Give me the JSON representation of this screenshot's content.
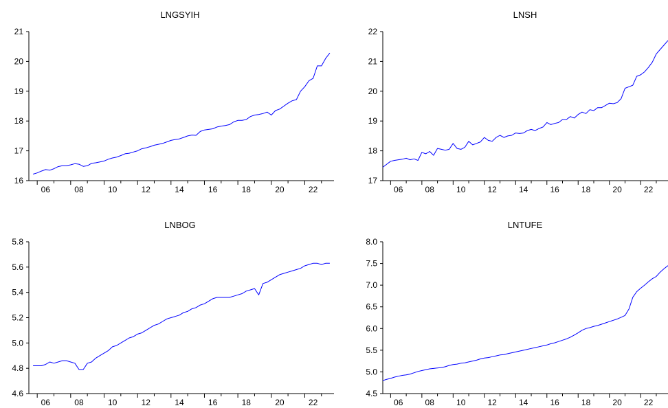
{
  "line_color": "#0000ff",
  "axis_color": "#000000",
  "chart_data": [
    {
      "type": "line",
      "title": "LNGSYIH",
      "xlabel": "",
      "ylabel": "",
      "grid": false,
      "xlim": [
        2005.5,
        2023.75
      ],
      "ylim": [
        16,
        21
      ],
      "yticks": [
        16,
        17,
        18,
        19,
        20,
        21
      ],
      "ytick_labels": [
        "16",
        "17",
        "18",
        "19",
        "20",
        "21"
      ],
      "xtick_years": [
        2006,
        2008,
        2010,
        2012,
        2014,
        2016,
        2018,
        2020,
        2022
      ],
      "xtick_labels": [
        "06",
        "08",
        "10",
        "12",
        "14",
        "16",
        "18",
        "20",
        "22"
      ],
      "series": [
        {
          "x": [
            2005.75,
            2006.0,
            2006.25,
            2006.5,
            2006.75,
            2007.0,
            2007.25,
            2007.5,
            2007.75,
            2008.0,
            2008.25,
            2008.5,
            2008.75,
            2009.0,
            2009.25,
            2009.5,
            2009.75,
            2010.0,
            2010.25,
            2010.5,
            2010.75,
            2011.0,
            2011.25,
            2011.5,
            2011.75,
            2012.0,
            2012.25,
            2012.5,
            2012.75,
            2013.0,
            2013.25,
            2013.5,
            2013.75,
            2014.0,
            2014.25,
            2014.5,
            2014.75,
            2015.0,
            2015.25,
            2015.5,
            2015.75,
            2016.0,
            2016.25,
            2016.5,
            2016.75,
            2017.0,
            2017.25,
            2017.5,
            2017.75,
            2018.0,
            2018.25,
            2018.5,
            2018.75,
            2019.0,
            2019.25,
            2019.5,
            2019.75,
            2020.0,
            2020.25,
            2020.5,
            2020.75,
            2021.0,
            2021.25,
            2021.5,
            2021.75,
            2022.0,
            2022.25,
            2022.5,
            2022.75,
            2023.0,
            2023.25,
            2023.5
          ],
          "values": [
            16.22,
            16.26,
            16.32,
            16.37,
            16.35,
            16.4,
            16.47,
            16.5,
            16.5,
            16.53,
            16.57,
            16.55,
            16.48,
            16.5,
            16.58,
            16.6,
            16.63,
            16.66,
            16.72,
            16.76,
            16.79,
            16.84,
            16.9,
            16.92,
            16.96,
            17.0,
            17.07,
            17.1,
            17.14,
            17.19,
            17.22,
            17.25,
            17.3,
            17.35,
            17.38,
            17.4,
            17.45,
            17.5,
            17.53,
            17.52,
            17.65,
            17.7,
            17.72,
            17.74,
            17.8,
            17.83,
            17.85,
            17.88,
            17.97,
            18.02,
            18.02,
            18.05,
            18.15,
            18.2,
            18.22,
            18.25,
            18.3,
            18.2,
            18.35,
            18.4,
            18.5,
            18.6,
            18.68,
            18.72,
            19.0,
            19.15,
            19.35,
            19.43,
            19.85,
            19.85,
            20.1,
            20.28
          ]
        }
      ]
    },
    {
      "type": "line",
      "title": "LNSH",
      "xlabel": "",
      "ylabel": "",
      "grid": false,
      "xlim": [
        2005.5,
        2023.75
      ],
      "ylim": [
        17,
        22
      ],
      "yticks": [
        17,
        18,
        19,
        20,
        21,
        22
      ],
      "ytick_labels": [
        "17",
        "18",
        "19",
        "20",
        "21",
        "22"
      ],
      "xtick_years": [
        2006,
        2008,
        2010,
        2012,
        2014,
        2016,
        2018,
        2020,
        2022
      ],
      "xtick_labels": [
        "06",
        "08",
        "10",
        "12",
        "14",
        "16",
        "18",
        "20",
        "22"
      ],
      "series": [
        {
          "x": [
            2005.5,
            2005.75,
            2006.0,
            2006.25,
            2006.5,
            2006.75,
            2007.0,
            2007.25,
            2007.5,
            2007.75,
            2008.0,
            2008.25,
            2008.5,
            2008.75,
            2009.0,
            2009.25,
            2009.5,
            2009.75,
            2010.0,
            2010.25,
            2010.5,
            2010.75,
            2011.0,
            2011.25,
            2011.5,
            2011.75,
            2012.0,
            2012.25,
            2012.5,
            2012.75,
            2013.0,
            2013.25,
            2013.5,
            2013.75,
            2014.0,
            2014.25,
            2014.5,
            2014.75,
            2015.0,
            2015.25,
            2015.5,
            2015.75,
            2016.0,
            2016.25,
            2016.5,
            2016.75,
            2017.0,
            2017.25,
            2017.5,
            2017.75,
            2018.0,
            2018.25,
            2018.5,
            2018.75,
            2019.0,
            2019.25,
            2019.5,
            2019.75,
            2020.0,
            2020.25,
            2020.5,
            2020.75,
            2021.0,
            2021.25,
            2021.5,
            2021.75,
            2022.0,
            2022.25,
            2022.5,
            2022.75,
            2023.0,
            2023.25,
            2023.5,
            2023.75
          ],
          "values": [
            17.45,
            17.55,
            17.65,
            17.68,
            17.7,
            17.72,
            17.75,
            17.7,
            17.73,
            17.68,
            17.95,
            17.9,
            17.98,
            17.85,
            18.08,
            18.05,
            18.02,
            18.05,
            18.25,
            18.08,
            18.05,
            18.12,
            18.32,
            18.2,
            18.25,
            18.3,
            18.45,
            18.35,
            18.32,
            18.45,
            18.52,
            18.45,
            18.5,
            18.52,
            18.6,
            18.58,
            18.6,
            18.68,
            18.72,
            18.68,
            18.75,
            18.8,
            18.95,
            18.88,
            18.92,
            18.95,
            19.05,
            19.05,
            19.15,
            19.1,
            19.22,
            19.3,
            19.25,
            19.38,
            19.35,
            19.45,
            19.45,
            19.52,
            19.6,
            19.58,
            19.62,
            19.75,
            20.1,
            20.15,
            20.2,
            20.5,
            20.55,
            20.65,
            20.8,
            20.98,
            21.25,
            21.4,
            21.55,
            21.7
          ]
        }
      ]
    },
    {
      "type": "line",
      "title": "LNBOG",
      "xlabel": "",
      "ylabel": "",
      "grid": false,
      "xlim": [
        2005.5,
        2023.75
      ],
      "ylim": [
        4.6,
        5.8
      ],
      "yticks": [
        4.6,
        4.8,
        5.0,
        5.2,
        5.4,
        5.6,
        5.8
      ],
      "ytick_labels": [
        "4.6",
        "4.8",
        "5.0",
        "5.2",
        "5.4",
        "5.6",
        "5.8"
      ],
      "xtick_years": [
        2006,
        2008,
        2010,
        2012,
        2014,
        2016,
        2018,
        2020,
        2022
      ],
      "xtick_labels": [
        "06",
        "08",
        "10",
        "12",
        "14",
        "16",
        "18",
        "20",
        "22"
      ],
      "series": [
        {
          "x": [
            2005.75,
            2006.0,
            2006.25,
            2006.5,
            2006.75,
            2007.0,
            2007.25,
            2007.5,
            2007.75,
            2008.0,
            2008.25,
            2008.5,
            2008.75,
            2009.0,
            2009.25,
            2009.5,
            2009.75,
            2010.0,
            2010.25,
            2010.5,
            2010.75,
            2011.0,
            2011.25,
            2011.5,
            2011.75,
            2012.0,
            2012.25,
            2012.5,
            2012.75,
            2013.0,
            2013.25,
            2013.5,
            2013.75,
            2014.0,
            2014.25,
            2014.5,
            2014.75,
            2015.0,
            2015.25,
            2015.5,
            2015.75,
            2016.0,
            2016.25,
            2016.5,
            2016.75,
            2017.0,
            2017.25,
            2017.5,
            2017.75,
            2018.0,
            2018.25,
            2018.5,
            2018.75,
            2019.0,
            2019.25,
            2019.5,
            2019.75,
            2020.0,
            2020.25,
            2020.5,
            2020.75,
            2021.0,
            2021.25,
            2021.5,
            2021.75,
            2022.0,
            2022.25,
            2022.5,
            2022.75,
            2023.0,
            2023.25,
            2023.5
          ],
          "values": [
            4.82,
            4.82,
            4.82,
            4.83,
            4.85,
            4.84,
            4.85,
            4.86,
            4.86,
            4.85,
            4.84,
            4.79,
            4.79,
            4.84,
            4.85,
            4.88,
            4.9,
            4.92,
            4.94,
            4.97,
            4.98,
            5.0,
            5.02,
            5.04,
            5.05,
            5.07,
            5.08,
            5.1,
            5.12,
            5.14,
            5.15,
            5.17,
            5.19,
            5.2,
            5.21,
            5.22,
            5.24,
            5.25,
            5.27,
            5.28,
            5.3,
            5.31,
            5.33,
            5.35,
            5.36,
            5.36,
            5.36,
            5.36,
            5.37,
            5.38,
            5.39,
            5.41,
            5.42,
            5.43,
            5.38,
            5.47,
            5.48,
            5.5,
            5.52,
            5.54,
            5.55,
            5.56,
            5.57,
            5.58,
            5.59,
            5.61,
            5.62,
            5.63,
            5.63,
            5.62,
            5.63,
            5.63
          ]
        }
      ]
    },
    {
      "type": "line",
      "title": "LNTUFE",
      "xlabel": "",
      "ylabel": "",
      "grid": false,
      "xlim": [
        2005.5,
        2023.75
      ],
      "ylim": [
        4.5,
        8.0
      ],
      "yticks": [
        4.5,
        5.0,
        5.5,
        6.0,
        6.5,
        7.0,
        7.5,
        8.0
      ],
      "ytick_labels": [
        "4.5",
        "5.0",
        "5.5",
        "6.0",
        "6.5",
        "7.0",
        "7.5",
        "8.0"
      ],
      "xtick_years": [
        2006,
        2008,
        2010,
        2012,
        2014,
        2016,
        2018,
        2020,
        2022
      ],
      "xtick_labels": [
        "06",
        "08",
        "10",
        "12",
        "14",
        "16",
        "18",
        "20",
        "22"
      ],
      "series": [
        {
          "x": [
            2005.5,
            2005.75,
            2006.0,
            2006.25,
            2006.5,
            2006.75,
            2007.0,
            2007.25,
            2007.5,
            2007.75,
            2008.0,
            2008.25,
            2008.5,
            2008.75,
            2009.0,
            2009.25,
            2009.5,
            2009.75,
            2010.0,
            2010.25,
            2010.5,
            2010.75,
            2011.0,
            2011.25,
            2011.5,
            2011.75,
            2012.0,
            2012.25,
            2012.5,
            2012.75,
            2013.0,
            2013.25,
            2013.5,
            2013.75,
            2014.0,
            2014.25,
            2014.5,
            2014.75,
            2015.0,
            2015.25,
            2015.5,
            2015.75,
            2016.0,
            2016.25,
            2016.5,
            2016.75,
            2017.0,
            2017.25,
            2017.5,
            2017.75,
            2018.0,
            2018.25,
            2018.5,
            2018.75,
            2019.0,
            2019.25,
            2019.5,
            2019.75,
            2020.0,
            2020.25,
            2020.5,
            2020.75,
            2021.0,
            2021.25,
            2021.5,
            2021.75,
            2022.0,
            2022.25,
            2022.5,
            2022.75,
            2023.0,
            2023.25,
            2023.5,
            2023.75
          ],
          "values": [
            4.8,
            4.83,
            4.85,
            4.88,
            4.9,
            4.92,
            4.93,
            4.95,
            4.98,
            5.01,
            5.03,
            5.05,
            5.07,
            5.08,
            5.09,
            5.1,
            5.12,
            5.15,
            5.17,
            5.18,
            5.2,
            5.21,
            5.23,
            5.25,
            5.27,
            5.3,
            5.32,
            5.33,
            5.35,
            5.37,
            5.39,
            5.4,
            5.42,
            5.44,
            5.46,
            5.48,
            5.5,
            5.52,
            5.54,
            5.56,
            5.58,
            5.6,
            5.62,
            5.65,
            5.67,
            5.7,
            5.73,
            5.76,
            5.8,
            5.85,
            5.9,
            5.96,
            6.0,
            6.02,
            6.05,
            6.07,
            6.1,
            6.13,
            6.16,
            6.19,
            6.22,
            6.26,
            6.3,
            6.45,
            6.72,
            6.85,
            6.93,
            7.0,
            7.08,
            7.15,
            7.2,
            7.3,
            7.38,
            7.45
          ]
        }
      ]
    }
  ]
}
